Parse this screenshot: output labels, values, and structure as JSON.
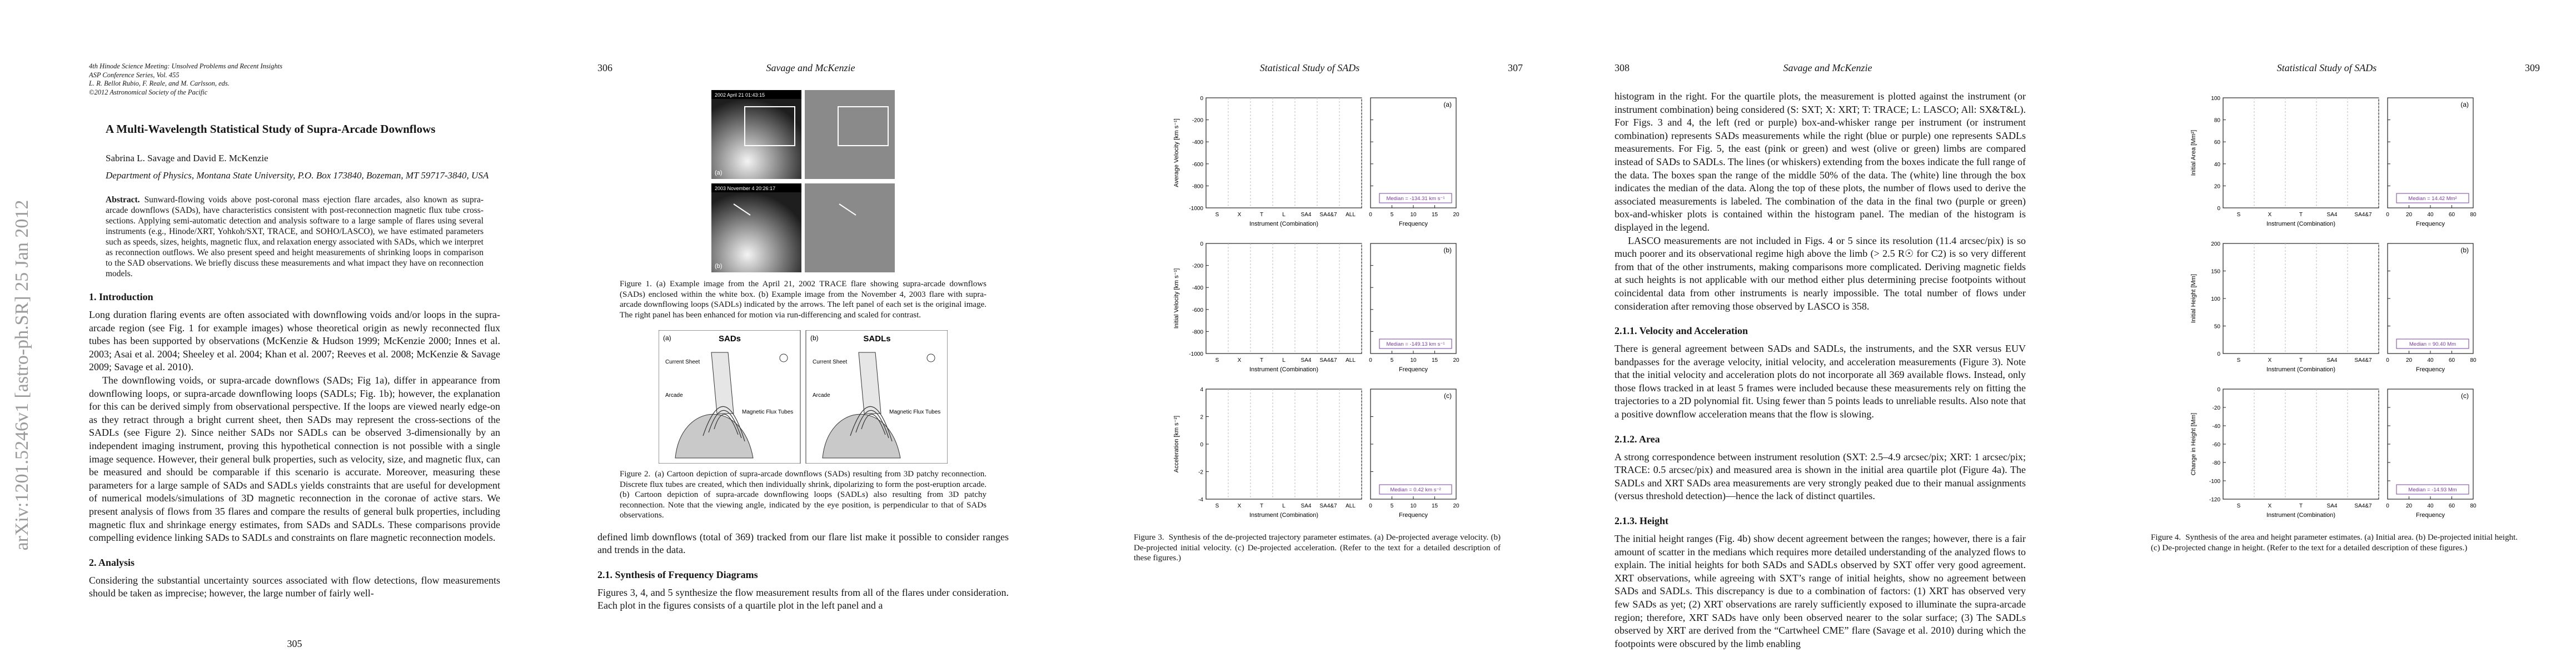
{
  "arxiv_stamp": "arXiv:1201.5246v1  [astro-ph.SR]  25 Jan 2012",
  "pages": [
    {
      "number": "305",
      "blocks": [
        {
          "kind": "frontmatter",
          "lines": [
            "4th Hinode Science Meeting: Unsolved Problems and Recent Insights",
            "ASP Conference Series, Vol. 455",
            "L. R. Bellot Rubio, F. Reale, and M. Carlsson, eds.",
            "©2012 Astronomical Society of the Pacific"
          ]
        },
        {
          "kind": "title",
          "text": "A Multi-Wavelength Statistical Study of Supra-Arcade Downflows"
        },
        {
          "kind": "authors",
          "text": "Sabrina L. Savage and David E. McKenzie"
        },
        {
          "kind": "affiliation",
          "text": "Department of Physics, Montana State University, P.O. Box 173840, Bozeman, MT 59717-3840, USA"
        },
        {
          "kind": "abstract",
          "label": "Abstract.",
          "text": "Sunward-flowing voids above post-coronal mass ejection flare arcades, also known as supra-arcade downflows (SADs), have characteristics consistent with post-reconnection magnetic flux tube cross-sections. Applying semi-automatic detection and analysis software to a large sample of flares using several instruments (e.g., Hinode/XRT, Yohkoh/SXT, TRACE, and SOHO/LASCO), we have estimated parameters such as speeds, sizes, heights, magnetic flux, and relaxation energy associated with SADs, which we interpret as reconnection outflows. We also present speed and height measurements of shrinking loops in comparison to the SAD observations. We briefly discuss these measurements and what impact they have on reconnection models."
        },
        {
          "kind": "heading",
          "text": "1.   Introduction"
        },
        {
          "kind": "para",
          "text": "Long duration flaring events are often associated with downflowing voids and/or loops in the supra-arcade region (see Fig. 1 for example images) whose theoretical origin as newly reconnected flux tubes has been supported by observations (McKenzie & Hudson 1999; McKenzie 2000; Innes et al. 2003; Asai et al. 2004; Sheeley et al. 2004; Khan et al. 2007; Reeves et al. 2008; McKenzie & Savage 2009; Savage et al. 2010)."
        },
        {
          "kind": "para",
          "text": "The downflowing voids, or supra-arcade downflows (SADs; Fig 1a), differ in appearance from downflowing loops, or supra-arcade downflowing loops (SADLs; Fig. 1b); however, the explanation for this can be derived simply from observational perspective. If the loops are viewed nearly edge-on as they retract through a bright current sheet, then SADs may represent the cross-sections of the SADLs (see Figure 2). Since neither SADs nor SADLs can be observed 3-dimensionally by an independent imaging instrument, proving this hypothetical connection is not possible with a single image sequence. However, their general bulk properties, such as velocity, size, and magnetic flux, can be measured and should be comparable if this scenario is accurate. Moreover, measuring these parameters for a large sample of SADs and SADLs yields constraints that are useful for development of numerical models/simulations of 3D magnetic reconnection in the coronae of active stars. We present analysis of flows from 35 flares and compare the results of general bulk properties, including magnetic flux and shrinkage energy estimates, from SADs and SADLs. These comparisons provide compelling evidence linking SADs to SADLs and constraints on flare magnetic reconnection models."
        },
        {
          "kind": "heading",
          "text": "2.   Analysis"
        },
        {
          "kind": "para",
          "text": "Considering the substantial uncertainty sources associated with flow detections, flow measurements should be taken as imprecise; however, the large number of fairly well-"
        }
      ]
    },
    {
      "number": "306",
      "running_head": "Savage and McKenzie",
      "blocks": [
        {
          "kind": "images",
          "stamps": [
            "2002 April 21 01:43:15",
            "2003 November 4 20:26:17"
          ],
          "tags": [
            "(a)",
            "(b)"
          ]
        },
        {
          "kind": "caption",
          "label": "Figure 1.",
          "text": "(a) Example image from the April 21, 2002 TRACE flare showing supra-arcade downflows (SADs) enclosed within the white box. (b) Example image from the November 4, 2003 flare with supra-arcade downflowing loops (SADLs) indicated by the arrows. The left panel of each set is the original image. The right panel has been enhanced for motion via run-differencing and scaled for contrast."
        },
        {
          "kind": "cartoon",
          "panels": [
            {
              "tag": "(a)",
              "title": "SADs",
              "sheet": "Current Sheet",
              "arcade": "Arcade",
              "tubes": "Magnetic Flux Tubes"
            },
            {
              "tag": "(b)",
              "title": "SADLs",
              "sheet": "Current Sheet",
              "arcade": "Arcade",
              "tubes": "Magnetic Flux Tubes"
            }
          ]
        },
        {
          "kind": "caption",
          "label": "Figure 2.",
          "text": "(a) Cartoon depiction of supra-arcade downflows (SADs) resulting from 3D patchy reconnection. Discrete flux tubes are created, which then individually shrink, dipolarizing to form the post-eruption arcade. (b) Cartoon depiction of supra-arcade downflowing loops (SADLs) also resulting from 3D patchy reconnection. Note that the viewing angle, indicated by the eye position, is perpendicular to that of SADs observations."
        },
        {
          "kind": "para",
          "text": "defined limb downflows (total of 369) tracked from our flare list make it possible to consider ranges and trends in the data."
        },
        {
          "kind": "heading",
          "text": "2.1.   Synthesis of Frequency Diagrams"
        },
        {
          "kind": "para",
          "text": "Figures 3, 4, and 5 synthesize the flow measurement results from all of the flares under consideration. Each plot in the figures consists of a quartile plot in the left panel and a"
        }
      ]
    },
    {
      "number": "307",
      "running_head": "Statistical Study of SADs",
      "blocks": [
        {
          "kind": "boxfig",
          "panels": [
            {
              "panel": "(a)",
              "ylabel": "Average Velocity [km s⁻¹]",
              "ylim": [
                -1000,
                0
              ],
              "yticks": [
                -1000,
                -800,
                -600,
                -400,
                -200,
                0
              ],
              "categories": [
                "S",
                "X",
                "T",
                "L",
                "SA4",
                "SA4&7",
                "ALL"
              ],
              "xlabel": "Instrument (Combination)",
              "hist_xlim": [
                0,
                20
              ],
              "hist_xticks": [
                0,
                5,
                10,
                15,
                20
              ],
              "hist_xlabel": "Frequency",
              "median": "Median = -134.31 km s⁻¹"
            },
            {
              "panel": "(b)",
              "ylabel": "Initial Velocity [km s⁻¹]",
              "ylim": [
                -1000,
                0
              ],
              "yticks": [
                -1000,
                -800,
                -600,
                -400,
                -200,
                0
              ],
              "categories": [
                "S",
                "X",
                "T",
                "L",
                "SA4",
                "SA4&7",
                "ALL"
              ],
              "xlabel": "Instrument (Combination)",
              "hist_xlim": [
                0,
                20
              ],
              "hist_xticks": [
                0,
                5,
                10,
                15,
                20
              ],
              "hist_xlabel": "Frequency",
              "median": "Median = -149.13 km s⁻¹"
            },
            {
              "panel": "(c)",
              "ylabel": "Acceleration [km s⁻²]",
              "ylim": [
                -4,
                4
              ],
              "yticks": [
                -4,
                -2,
                0,
                2,
                4
              ],
              "categories": [
                "S",
                "X",
                "T",
                "L",
                "SA4",
                "SA4&7",
                "ALL"
              ],
              "xlabel": "Instrument (Combination)",
              "hist_xlim": [
                0,
                20
              ],
              "hist_xticks": [
                0,
                5,
                10,
                15,
                20
              ],
              "hist_xlabel": "Frequency",
              "median": "Median = 0.42 km s⁻²"
            }
          ]
        },
        {
          "kind": "caption",
          "label": "Figure 3.",
          "text": "Synthesis of the de-projected trajectory parameter estimates. (a) De-projected average velocity. (b) De-projected initial velocity. (c) De-projected acceleration. (Refer to the text for a detailed description of these figures.)"
        }
      ]
    },
    {
      "number": "308",
      "running_head": "Savage and McKenzie",
      "blocks": [
        {
          "kind": "para",
          "text": "histogram in the right. For the quartile plots, the measurement is plotted against the instrument (or instrument combination) being considered (S: SXT; X: XRT; T: TRACE; L: LASCO; All: SX&T&L). For Figs. 3 and 4, the left (red or purple) box-and-whisker range per instrument (or instrument combination) represents SADs measurements while the right (blue or purple) one represents SADLs measurements. For Fig. 5, the east (pink or green) and west (olive or green) limbs are compared instead of SADs to SADLs. The lines (or whiskers) extending from the boxes indicate the full range of the data. The boxes span the range of the middle 50% of the data. The (white) line through the box indicates the median of the data. Along the top of these plots, the number of flows used to derive the associated measurements is labeled. The combination of the data in the final two (purple or green) box-and-whisker plots is contained within the histogram panel. The median of the histogram is displayed in the legend."
        },
        {
          "kind": "para",
          "text": "LASCO measurements are not included in Figs. 4 or 5 since its resolution (11.4 arcsec/pix) is so much poorer and its observational regime high above the limb (> 2.5 R☉ for C2) is so very different from that of the other instruments, making comparisons more complicated. Deriving magnetic fields at such heights is not applicable with our method either plus determining precise footpoints without coincidental data from other instruments is nearly impossible. The total number of flows under consideration after removing those observed by LASCO is 358."
        },
        {
          "kind": "heading",
          "text": "2.1.1.   Velocity and Acceleration"
        },
        {
          "kind": "para",
          "text": "There is general agreement between SADs and SADLs, the instruments, and the SXR versus EUV bandpasses for the average velocity, initial velocity, and acceleration measurements (Figure 3). Note that the initial velocity and acceleration plots do not incorporate all 369 available flows. Instead, only those flows tracked in at least 5 frames were included because these measurements rely on fitting the trajectories to a 2D polynomial fit. Using fewer than 5 points leads to unreliable results. Also note that a positive downflow acceleration means that the flow is slowing."
        },
        {
          "kind": "heading",
          "text": "2.1.2.   Area"
        },
        {
          "kind": "para",
          "text": "A strong correspondence between instrument resolution (SXT: 2.5–4.9 arcsec/pix; XRT: 1 arcsec/pix; TRACE: 0.5 arcsec/pix) and measured area is shown in the initial area quartile plot (Figure 4a). The SADLs and XRT SADs area measurements are very strongly peaked due to their manual assignments (versus threshold detection)—hence the lack of distinct quartiles."
        },
        {
          "kind": "heading",
          "text": "2.1.3.   Height"
        },
        {
          "kind": "para",
          "text": "The initial height ranges (Fig. 4b) show decent agreement between the ranges; however, there is a fair amount of scatter in the medians which requires more detailed understanding of the analyzed flows to explain. The initial heights for both SADs and SADLs observed by SXT offer very good agreement. XRT observations, while agreeing with SXT’s range of initial heights, show no agreement between SADs and SADLs. This discrepancy is due to a combination of factors: (1) XRT has observed very few SADs as yet; (2) XRT observations are rarely sufficiently exposed to illuminate the supra-arcade region; therefore, XRT SADs have only been observed nearer to the solar surface; (3) The SADLs observed by XRT are derived from the “Cartwheel CME” flare (Savage et al. 2010) during which the footpoints were obscured by the limb enabling"
        }
      ]
    },
    {
      "number": "309",
      "running_head": "Statistical Study of SADs",
      "blocks": [
        {
          "kind": "boxfig",
          "panels": [
            {
              "panel": "(a)",
              "ylabel": "Initial Area [Mm²]",
              "ylim": [
                0,
                100
              ],
              "yticks": [
                0,
                20,
                40,
                60,
                80,
                100
              ],
              "categories": [
                "S",
                "X",
                "T",
                "SA4",
                "SA4&7"
              ],
              "xlabel": "Instrument (Combination)",
              "hist_xlim": [
                0,
                80
              ],
              "hist_xticks": [
                0,
                20,
                40,
                60,
                80
              ],
              "hist_xlabel": "Frequency",
              "median": "Median = 14.42 Mm²"
            },
            {
              "panel": "(b)",
              "ylabel": "Initial Height [Mm]",
              "ylim": [
                0,
                200
              ],
              "yticks": [
                0,
                50,
                100,
                150,
                200
              ],
              "categories": [
                "S",
                "X",
                "T",
                "SA4",
                "SA4&7"
              ],
              "xlabel": "Instrument (Combination)",
              "hist_xlim": [
                0,
                80
              ],
              "hist_xticks": [
                0,
                20,
                40,
                60,
                80
              ],
              "hist_xlabel": "Frequency",
              "median": "Median = 90.40 Mm"
            },
            {
              "panel": "(c)",
              "ylabel": "Change in Height [Mm]",
              "ylim": [
                -120,
                0
              ],
              "yticks": [
                -120,
                -100,
                -80,
                -60,
                -40,
                -20,
                0
              ],
              "categories": [
                "S",
                "X",
                "T",
                "SA4",
                "SA4&7"
              ],
              "xlabel": "Instrument (Combination)",
              "hist_xlim": [
                0,
                80
              ],
              "hist_xticks": [
                0,
                20,
                40,
                60,
                80
              ],
              "hist_xlabel": "Frequency",
              "median": "Median = -14.93 Mm"
            }
          ]
        },
        {
          "kind": "caption",
          "label": "Figure 4.",
          "text": "Synthesis of the area and height parameter estimates. (a) Initial area. (b) De-projected initial height. (c) De-projected change in height. (Refer to the text for a detailed description of these figures.)"
        }
      ]
    }
  ]
}
